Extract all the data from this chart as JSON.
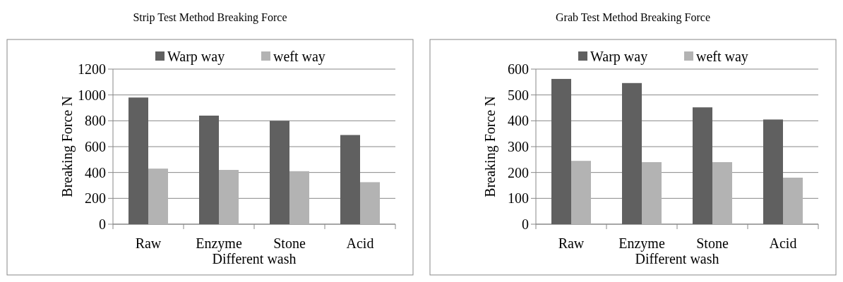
{
  "chart_data": [
    {
      "type": "bar",
      "title": "Strip Test  Method Breaking Force",
      "xlabel": "Different wash",
      "ylabel": "Breaking Force N",
      "categories": [
        "Raw",
        "Enzyme",
        "Stone",
        "Acid"
      ],
      "series": [
        {
          "name": "Warp way",
          "color": "#606060",
          "values": [
            980,
            840,
            800,
            690
          ]
        },
        {
          "name": "weft way",
          "color": "#b3b3b3",
          "values": [
            430,
            420,
            410,
            325
          ]
        }
      ],
      "ylim": [
        0,
        1200
      ],
      "yticks": [
        0,
        200,
        400,
        600,
        800,
        1000,
        1200
      ],
      "grid": "y",
      "legend": "top"
    },
    {
      "type": "bar",
      "title": "Grab Test Method Breaking Force",
      "xlabel": "Different wash",
      "ylabel": "Breaking Force N",
      "categories": [
        "Raw",
        "Enzyme",
        "Stone",
        "Acid"
      ],
      "series": [
        {
          "name": "Warp way",
          "color": "#606060",
          "values": [
            562,
            546,
            452,
            405
          ]
        },
        {
          "name": "weft way",
          "color": "#b3b3b3",
          "values": [
            245,
            240,
            240,
            180
          ]
        }
      ],
      "ylim": [
        0,
        600
      ],
      "yticks": [
        0,
        100,
        200,
        300,
        400,
        500,
        600
      ],
      "grid": "y",
      "legend": "top"
    }
  ]
}
